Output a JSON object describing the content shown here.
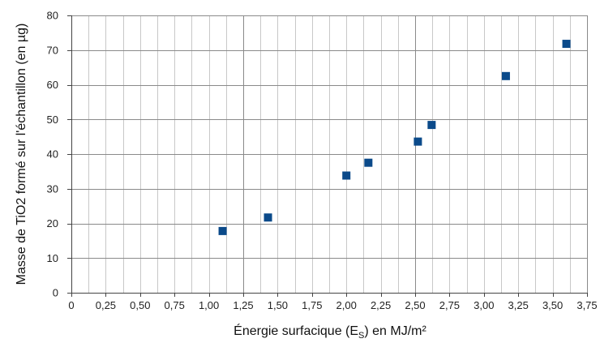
{
  "chart_data": {
    "type": "scatter",
    "xlabel": "Énergie surfacique (E",
    "xlabel_sub": "S",
    "xlabel_suffix": ") en MJ/m²",
    "ylabel": "Masse de TiO2 formé sur l'échantillon (en µg)",
    "xlim": [
      0,
      3.75
    ],
    "ylim": [
      0,
      80
    ],
    "x_ticks": [
      0,
      0.25,
      0.5,
      0.75,
      1.0,
      1.25,
      1.5,
      1.75,
      2.0,
      2.25,
      2.5,
      2.75,
      3.0,
      3.25,
      3.5,
      3.75
    ],
    "x_tick_labels": [
      "0",
      "0,25",
      "0,50",
      "0,75",
      "1,00",
      "1,25",
      "1,50",
      "1,75",
      "2,00",
      "2,25",
      "2,50",
      "2,75",
      "3,00",
      "3,25",
      "3,50",
      "3,75"
    ],
    "y_ticks": [
      0,
      10,
      20,
      30,
      40,
      50,
      60,
      70,
      80
    ],
    "y_tick_labels": [
      "0",
      "10",
      "20",
      "30",
      "40",
      "50",
      "60",
      "70",
      "80"
    ],
    "grid": true,
    "marker": "square",
    "marker_color": "#0b4a8a",
    "series": [
      {
        "x": [
          1.1,
          1.43,
          2.0,
          2.16,
          2.52,
          2.62,
          3.16,
          3.6
        ],
        "y": [
          17.8,
          21.7,
          33.8,
          37.5,
          43.6,
          48.4,
          62.5,
          71.8
        ]
      }
    ]
  }
}
